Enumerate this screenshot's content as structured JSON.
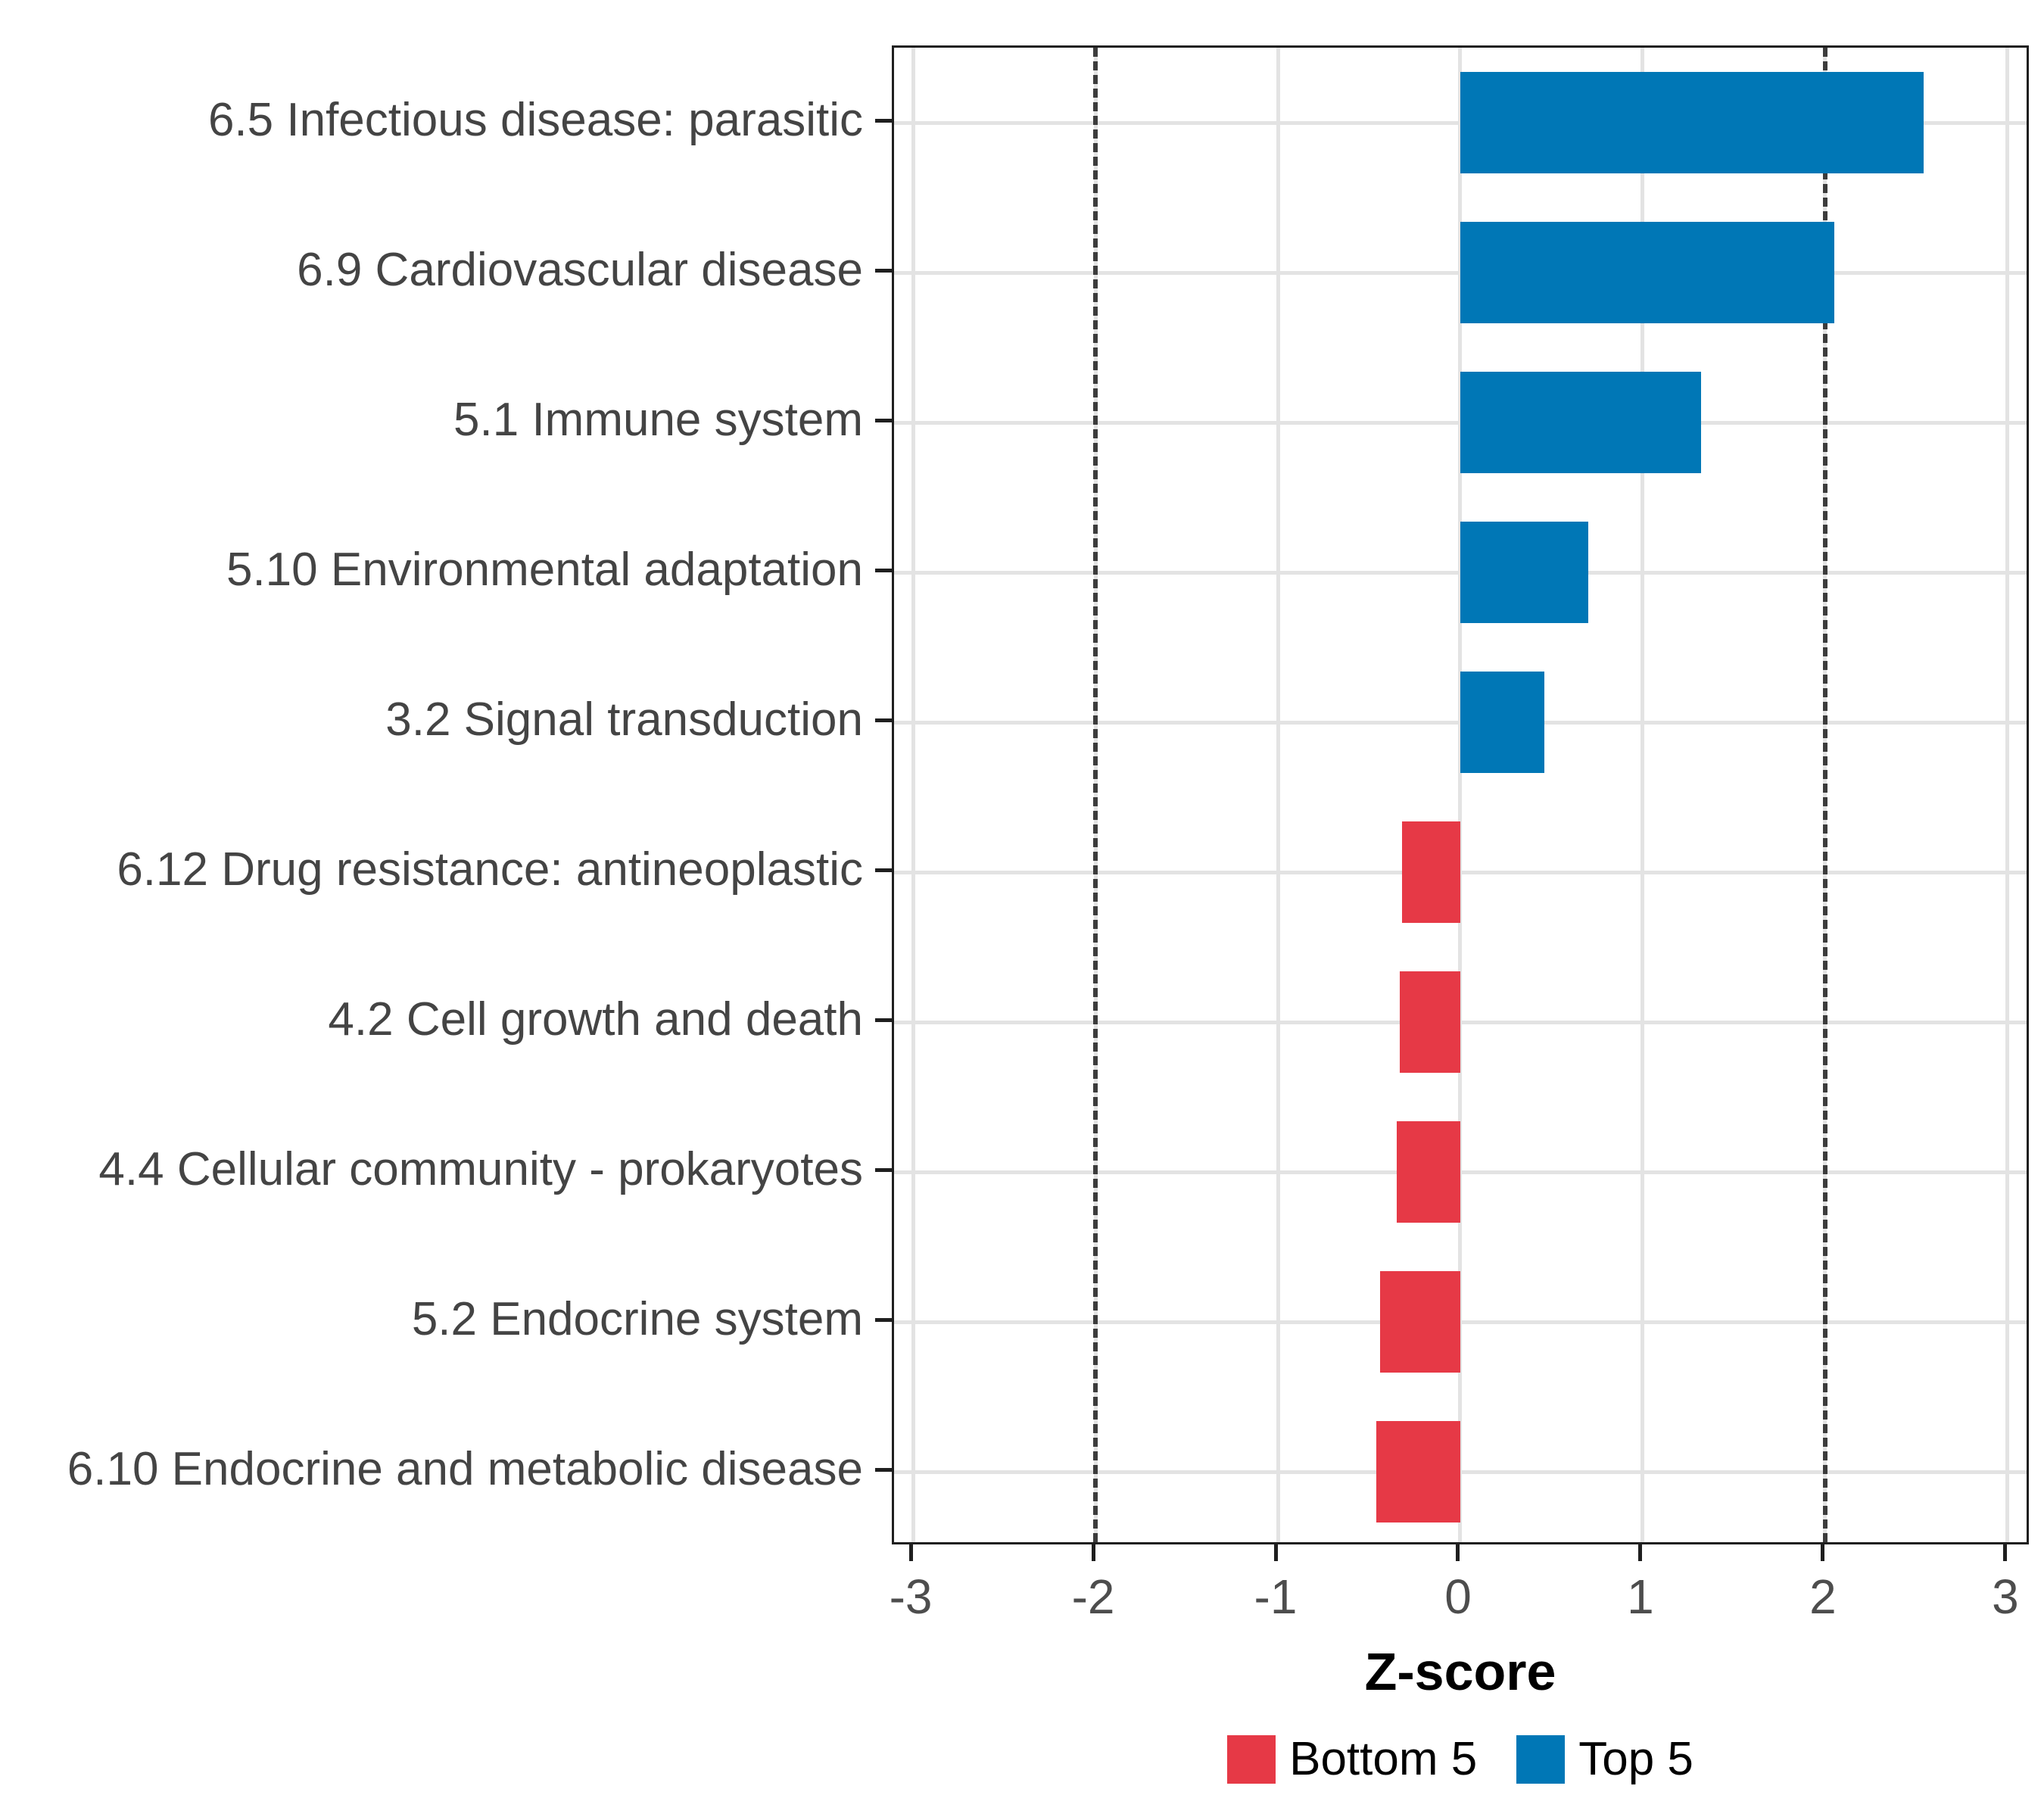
{
  "chart_data": {
    "type": "bar",
    "orientation": "horizontal",
    "title": "",
    "xlabel": "Z-score",
    "ylabel": "",
    "categories": [
      "6.5 Infectious disease: parasitic",
      "6.9 Cardiovascular disease",
      "5.1 Immune system",
      "5.10 Environmental adaptation",
      "3.2 Signal transduction",
      "6.12 Drug resistance: antineoplastic",
      "4.2 Cell growth and death",
      "4.4 Cellular community - prokaryotes",
      "5.2 Endocrine system",
      "6.10 Endocrine and metabolic disease"
    ],
    "values": [
      2.54,
      2.05,
      1.32,
      0.7,
      0.46,
      -0.32,
      -0.33,
      -0.35,
      -0.44,
      -0.46
    ],
    "groups": [
      "Top 5",
      "Top 5",
      "Top 5",
      "Top 5",
      "Top 5",
      "Bottom 5",
      "Bottom 5",
      "Bottom 5",
      "Bottom 5",
      "Bottom 5"
    ],
    "group_colors": {
      "Top 5": "#0077b6",
      "Bottom 5": "#e63946"
    },
    "x_ticks": [
      -3,
      -2,
      -1,
      0,
      1,
      2,
      3
    ],
    "x_tick_labels": [
      "-3",
      "-2",
      "-1",
      "0",
      "1",
      "2",
      "3"
    ],
    "xlim": [
      -3.104,
      3.129
    ],
    "reference_lines": [
      -2,
      2
    ],
    "grid": true,
    "legend_position": "bottom",
    "legend": [
      {
        "label": "Bottom 5",
        "color": "#e63946"
      },
      {
        "label": "Top 5",
        "color": "#0077b6"
      }
    ]
  }
}
